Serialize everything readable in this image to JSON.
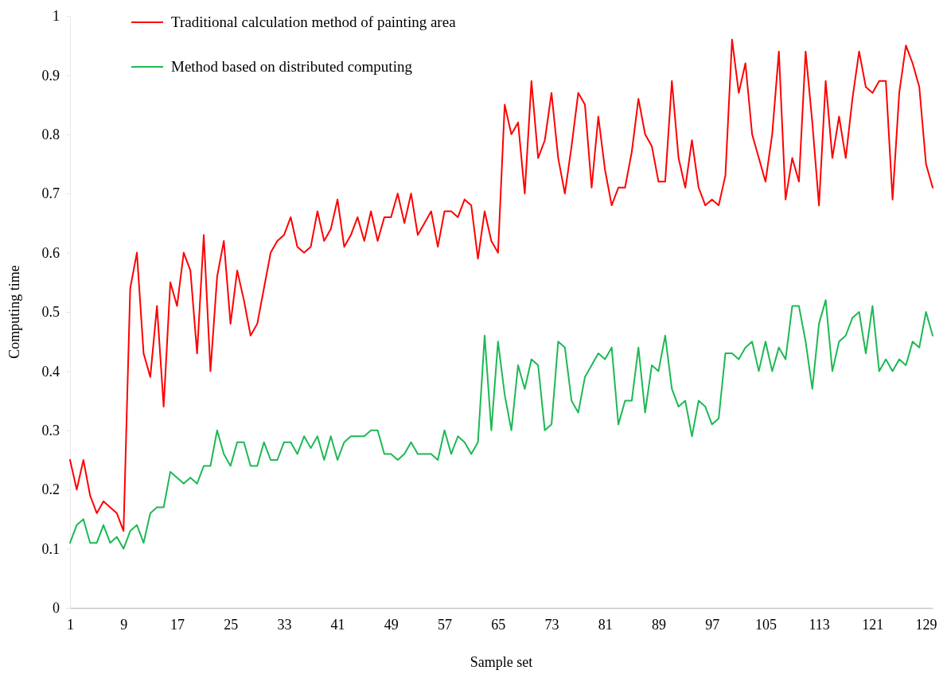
{
  "chart_data": {
    "type": "line",
    "xlabel": "Sample set",
    "ylabel": "Computing time",
    "x": [
      1,
      2,
      3,
      4,
      5,
      6,
      7,
      8,
      9,
      10,
      11,
      12,
      13,
      14,
      15,
      16,
      17,
      18,
      19,
      20,
      21,
      22,
      23,
      24,
      25,
      26,
      27,
      28,
      29,
      30,
      31,
      32,
      33,
      34,
      35,
      36,
      37,
      38,
      39,
      40,
      41,
      42,
      43,
      44,
      45,
      46,
      47,
      48,
      49,
      50,
      51,
      52,
      53,
      54,
      55,
      56,
      57,
      58,
      59,
      60,
      61,
      62,
      63,
      64,
      65,
      66,
      67,
      68,
      69,
      70,
      71,
      72,
      73,
      74,
      75,
      76,
      77,
      78,
      79,
      80,
      81,
      82,
      83,
      84,
      85,
      86,
      87,
      88,
      89,
      90,
      91,
      92,
      93,
      94,
      95,
      96,
      97,
      98,
      99,
      100,
      101,
      102,
      103,
      104,
      105,
      106,
      107,
      108,
      109,
      110,
      111,
      112,
      113,
      114,
      115,
      116,
      117,
      118,
      119,
      120,
      121,
      122,
      123,
      124,
      125,
      126,
      127,
      128,
      129,
      130
    ],
    "xlim": [
      1,
      130
    ],
    "xticks": [
      1,
      9,
      17,
      25,
      33,
      41,
      49,
      57,
      65,
      73,
      81,
      89,
      97,
      105,
      113,
      121,
      129
    ],
    "ylim": [
      0,
      1
    ],
    "yticks": [
      0,
      0.1,
      0.2,
      0.3,
      0.4,
      0.5,
      0.6,
      0.7,
      0.8,
      0.9,
      1
    ],
    "legend": "top left",
    "series": [
      {
        "name": "Traditional calculation method of painting area",
        "color": "#ff0000",
        "values": [
          0.25,
          0.2,
          0.25,
          0.19,
          0.16,
          0.18,
          0.17,
          0.16,
          0.13,
          0.54,
          0.6,
          0.43,
          0.39,
          0.51,
          0.34,
          0.55,
          0.51,
          0.6,
          0.57,
          0.43,
          0.63,
          0.4,
          0.56,
          0.62,
          0.48,
          0.57,
          0.52,
          0.46,
          0.48,
          0.54,
          0.6,
          0.62,
          0.63,
          0.66,
          0.61,
          0.6,
          0.61,
          0.67,
          0.62,
          0.64,
          0.69,
          0.61,
          0.63,
          0.66,
          0.62,
          0.67,
          0.62,
          0.66,
          0.66,
          0.7,
          0.65,
          0.7,
          0.63,
          0.65,
          0.67,
          0.61,
          0.67,
          0.67,
          0.66,
          0.69,
          0.68,
          0.59,
          0.67,
          0.62,
          0.6,
          0.85,
          0.8,
          0.82,
          0.7,
          0.89,
          0.76,
          0.79,
          0.87,
          0.76,
          0.7,
          0.78,
          0.87,
          0.85,
          0.71,
          0.83,
          0.74,
          0.68,
          0.71,
          0.71,
          0.77,
          0.86,
          0.8,
          0.78,
          0.72,
          0.72,
          0.89,
          0.76,
          0.71,
          0.79,
          0.71,
          0.68,
          0.69,
          0.68,
          0.73,
          0.96,
          0.87,
          0.92,
          0.8,
          0.76,
          0.72,
          0.8,
          0.94,
          0.69,
          0.76,
          0.72,
          0.94,
          0.82,
          0.68,
          0.89,
          0.76,
          0.83,
          0.76,
          0.86,
          0.94,
          0.88,
          0.87,
          0.89,
          0.89,
          0.69,
          0.87,
          0.95,
          0.92,
          0.88,
          0.75,
          0.71
        ]
      },
      {
        "name": "Method based on distributed computing",
        "color": "#1db954",
        "values": [
          0.11,
          0.14,
          0.15,
          0.11,
          0.11,
          0.14,
          0.11,
          0.12,
          0.1,
          0.13,
          0.14,
          0.11,
          0.16,
          0.17,
          0.17,
          0.23,
          0.22,
          0.21,
          0.22,
          0.21,
          0.24,
          0.24,
          0.3,
          0.26,
          0.24,
          0.28,
          0.28,
          0.24,
          0.24,
          0.28,
          0.25,
          0.25,
          0.28,
          0.28,
          0.26,
          0.29,
          0.27,
          0.29,
          0.25,
          0.29,
          0.25,
          0.28,
          0.29,
          0.29,
          0.29,
          0.3,
          0.3,
          0.26,
          0.26,
          0.25,
          0.26,
          0.28,
          0.26,
          0.26,
          0.26,
          0.25,
          0.3,
          0.26,
          0.29,
          0.28,
          0.26,
          0.28,
          0.46,
          0.3,
          0.45,
          0.36,
          0.3,
          0.41,
          0.37,
          0.42,
          0.41,
          0.3,
          0.31,
          0.45,
          0.44,
          0.35,
          0.33,
          0.39,
          0.41,
          0.43,
          0.42,
          0.44,
          0.31,
          0.35,
          0.35,
          0.44,
          0.33,
          0.41,
          0.4,
          0.46,
          0.37,
          0.34,
          0.35,
          0.29,
          0.35,
          0.34,
          0.31,
          0.32,
          0.43,
          0.43,
          0.42,
          0.44,
          0.45,
          0.4,
          0.45,
          0.4,
          0.44,
          0.42,
          0.51,
          0.51,
          0.45,
          0.37,
          0.48,
          0.52,
          0.4,
          0.45,
          0.46,
          0.49,
          0.5,
          0.43,
          0.51,
          0.4,
          0.42,
          0.4,
          0.42,
          0.41,
          0.45,
          0.44,
          0.5,
          0.46
        ]
      }
    ]
  }
}
